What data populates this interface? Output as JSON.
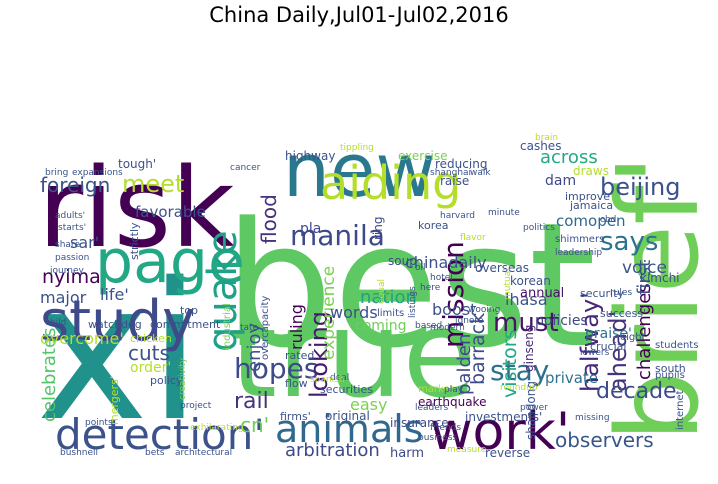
{
  "title": "China Daily,Jul01-Jul02,2016",
  "words": [
    "best",
    "true'",
    "xi",
    "risk",
    "brief'",
    "new",
    "page",
    "study",
    "aiding",
    "detection'",
    "work'",
    "animals",
    "quake",
    "hopes",
    "manila",
    "meet",
    "foreign",
    "beijing",
    "says",
    "must",
    "stay",
    "looking",
    "mission",
    "halfway'",
    "ahead'",
    "challenges",
    "first",
    "decade",
    "observers",
    "arbitration",
    "celebrates",
    "cuts",
    "rail",
    "cn'",
    "enjoy",
    "flood",
    "ruling",
    "experience",
    "visitors",
    "barrack",
    "palden",
    "chinadaily",
    "nation",
    "words",
    "boost",
    "lhasa",
    "across",
    "dam",
    "nyima",
    "major",
    "life'",
    "sar'",
    "favorable",
    "overcome'",
    "order'",
    "comopen",
    "voice",
    "praise'",
    "annual",
    "policies",
    "private",
    "coming",
    "easy",
    "harm",
    "insurance",
    "original",
    "earthquake",
    "reverse",
    "investments'",
    "highway",
    "exercise",
    "cashes",
    "tough'",
    "soup",
    "ring",
    "raise",
    "korea",
    "kimchi",
    "security",
    "crucial",
    "success'",
    "south",
    "ginseng",
    "shandong",
    "korean",
    "overseas",
    "securities",
    "flow",
    "firms'",
    "rated",
    "limits",
    "top",
    "policy",
    "commitment",
    "watchdog",
    "strictly",
    "chicken",
    "mergers'",
    "industrial",
    "overcapacity",
    "pla",
    "reducing",
    "draws",
    "improve",
    "jamaica",
    "shimmers",
    "students",
    "internet",
    "pupils",
    "eight",
    "lowers",
    "market",
    "business",
    "friends",
    "play",
    "deal",
    "spanish",
    "creativity",
    "tate",
    "project",
    "points",
    "bushnell",
    "architectural",
    "bets",
    "exhilarating",
    "bring",
    "share",
    "passion",
    "journey",
    "child",
    "adults'",
    "starts'",
    "expansions",
    "brain",
    "tippling",
    "shanghai",
    "walk",
    "cancer",
    "harvard",
    "minute",
    "politics",
    "leadership",
    "mutual",
    "equal",
    "listings",
    "based",
    "wooing",
    "ignore",
    "modern",
    "roundup'",
    "leaders",
    "measure",
    "power",
    "missing",
    "oil",
    "hotel",
    "here",
    "flavor",
    "cbd",
    "rules"
  ]
}
